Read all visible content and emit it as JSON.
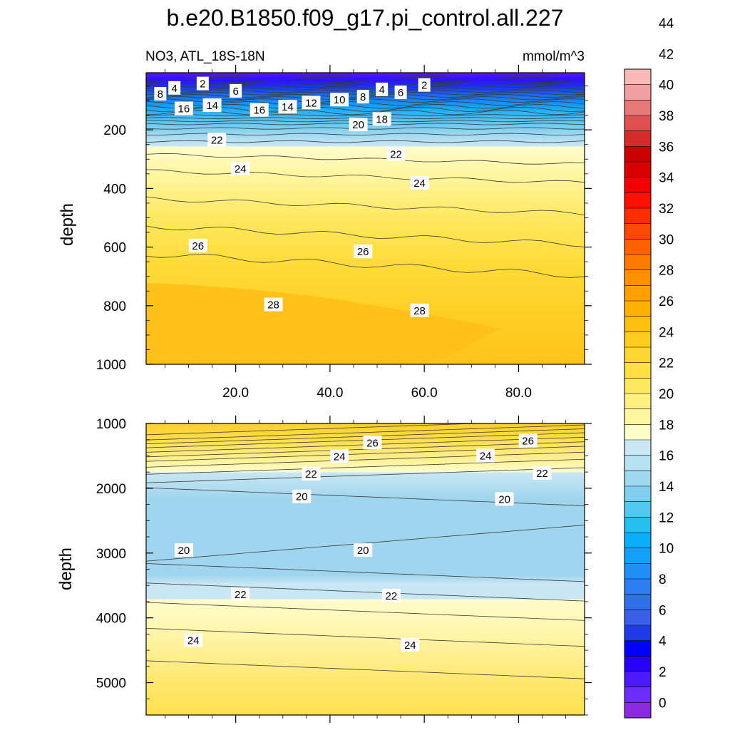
{
  "title": "b.e20.B1850.f09_g17.pi_control.all.227",
  "subtitle_left": "NO3, ATL_18S-18N",
  "units": "mmol/m^3",
  "colorbar": {
    "labels": [
      "0",
      "2",
      "4",
      "6",
      "8",
      "10",
      "12",
      "14",
      "16",
      "18",
      "20",
      "22",
      "24",
      "26",
      "28",
      "30",
      "32",
      "34",
      "36",
      "38",
      "40",
      "42",
      "44"
    ],
    "colors": [
      "#8a2be2",
      "#6a2cff",
      "#4b18ff",
      "#2800ff",
      "#0000ff",
      "#1f3be8",
      "#3a5ee8",
      "#2f6fe8",
      "#2b7ff0",
      "#1f8ff5",
      "#13a0fb",
      "#08b0fc",
      "#22bff0",
      "#55c8f2",
      "#7fd0f0",
      "#9ed8ee",
      "#b8e2f2",
      "#c9e8f5",
      "#ffffc8",
      "#fff7a0",
      "#fff080",
      "#ffe860",
      "#ffe040",
      "#ffd630",
      "#ffcc20",
      "#ffc010",
      "#ffb000",
      "#ffa000",
      "#ff9000",
      "#ff7800",
      "#ff6000",
      "#ff4800",
      "#ff2c00",
      "#ff1000",
      "#f00000",
      "#d80000",
      "#c80000",
      "#d52a2a",
      "#e05050",
      "#e87878",
      "#f0a0a0",
      "#f8b8b8"
    ]
  },
  "chart_data": [
    {
      "type": "contour",
      "panel": "upper",
      "xlabel": "",
      "ylabel": "depth",
      "xlim": [
        1,
        94
      ],
      "ylim": [
        1000,
        5
      ],
      "x_ticks": [
        "20.0",
        "40.0",
        "60.0",
        "80.0"
      ],
      "y_ticks": [
        "200",
        "400",
        "600",
        "800",
        "1000"
      ],
      "contour_labels": [
        {
          "text": "2",
          "x": 13,
          "y": 43
        },
        {
          "text": "4",
          "x": 7,
          "y": 58
        },
        {
          "text": "8",
          "x": 4,
          "y": 78
        },
        {
          "text": "6",
          "x": 20,
          "y": 68
        },
        {
          "text": "16",
          "x": 9,
          "y": 128
        },
        {
          "text": "14",
          "x": 15,
          "y": 117
        },
        {
          "text": "16",
          "x": 25,
          "y": 133
        },
        {
          "text": "14",
          "x": 31,
          "y": 122
        },
        {
          "text": "12",
          "x": 36,
          "y": 108
        },
        {
          "text": "10",
          "x": 42,
          "y": 98
        },
        {
          "text": "8",
          "x": 47,
          "y": 88
        },
        {
          "text": "4",
          "x": 51,
          "y": 63
        },
        {
          "text": "6",
          "x": 55,
          "y": 73
        },
        {
          "text": "2",
          "x": 60,
          "y": 48
        },
        {
          "text": "18",
          "x": 51,
          "y": 164
        },
        {
          "text": "20",
          "x": 46,
          "y": 183
        },
        {
          "text": "22",
          "x": 16,
          "y": 235
        },
        {
          "text": "22",
          "x": 54,
          "y": 283
        },
        {
          "text": "24",
          "x": 21,
          "y": 334
        },
        {
          "text": "24",
          "x": 59,
          "y": 382
        },
        {
          "text": "26",
          "x": 12,
          "y": 596
        },
        {
          "text": "26",
          "x": 47,
          "y": 616
        },
        {
          "text": "28",
          "x": 28,
          "y": 797
        },
        {
          "text": "28",
          "x": 59,
          "y": 817
        }
      ]
    },
    {
      "type": "contour",
      "panel": "lower",
      "xlabel": "",
      "ylabel": "depth",
      "xlim": [
        1,
        94
      ],
      "ylim": [
        5500,
        1000
      ],
      "y_ticks": [
        "1000",
        "2000",
        "3000",
        "4000",
        "5000"
      ],
      "contour_labels": [
        {
          "text": "26",
          "x": 49,
          "y": 1300
        },
        {
          "text": "26",
          "x": 82,
          "y": 1270
        },
        {
          "text": "24",
          "x": 42,
          "y": 1510
        },
        {
          "text": "24",
          "x": 73,
          "y": 1500
        },
        {
          "text": "22",
          "x": 36,
          "y": 1780
        },
        {
          "text": "22",
          "x": 85,
          "y": 1770
        },
        {
          "text": "20",
          "x": 34,
          "y": 2130
        },
        {
          "text": "20",
          "x": 77,
          "y": 2170
        },
        {
          "text": "20",
          "x": 9,
          "y": 2960
        },
        {
          "text": "20",
          "x": 47,
          "y": 2960
        },
        {
          "text": "22",
          "x": 21,
          "y": 3640
        },
        {
          "text": "22",
          "x": 53,
          "y": 3660
        },
        {
          "text": "24",
          "x": 11,
          "y": 4350
        },
        {
          "text": "24",
          "x": 57,
          "y": 4420
        }
      ]
    }
  ]
}
